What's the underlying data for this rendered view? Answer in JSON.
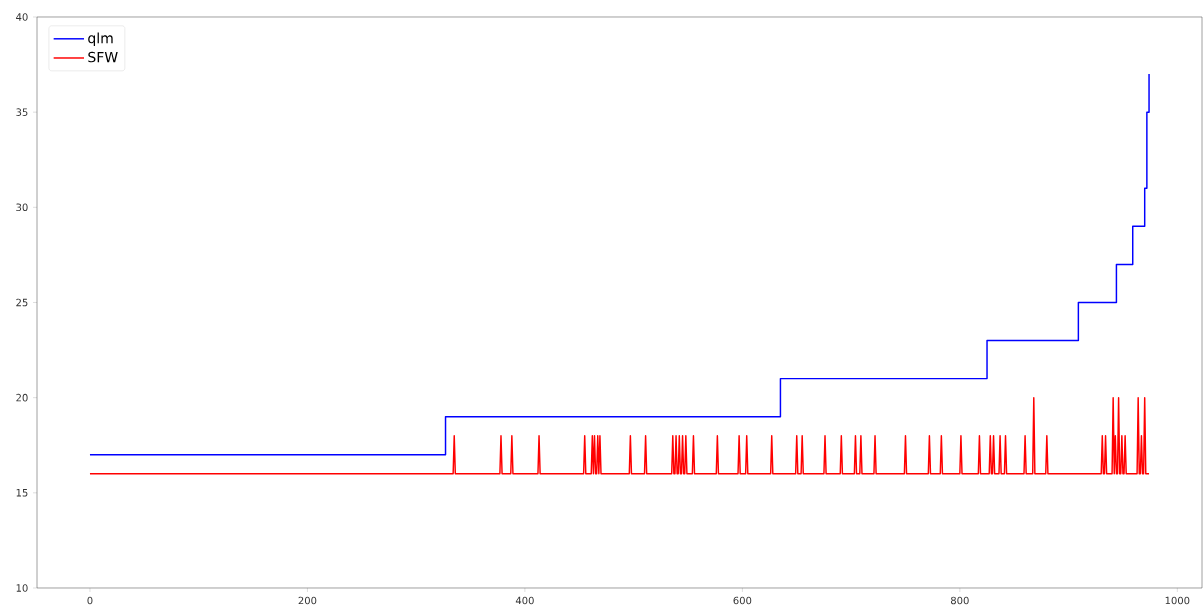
{
  "chart_data": {
    "type": "line",
    "series": [
      {
        "name": "qlm",
        "type": "step",
        "color": "#0000ff",
        "x": [
          0,
          327,
          635,
          825,
          909,
          944,
          959,
          970,
          972,
          974
        ],
        "values": [
          17,
          19,
          21,
          23,
          25,
          27,
          29,
          31,
          35,
          37
        ]
      },
      {
        "name": "SFW",
        "color": "#ff0000",
        "x": [
          0,
          334,
          335,
          336,
          377,
          378,
          379,
          387,
          388,
          389,
          412,
          413,
          414,
          454,
          455,
          456,
          461,
          462,
          463,
          463,
          464,
          465,
          466,
          467,
          468,
          468,
          469,
          470,
          496,
          497,
          498,
          510,
          511,
          512,
          535,
          536,
          537,
          538,
          539,
          540,
          541,
          542,
          543,
          544,
          545,
          546,
          547,
          548,
          549,
          554,
          555,
          556,
          576,
          577,
          578,
          596,
          597,
          598,
          603,
          604,
          605,
          626,
          627,
          628,
          649,
          650,
          651,
          654,
          655,
          656,
          675,
          676,
          677,
          690,
          691,
          692,
          703,
          704,
          705,
          708,
          709,
          710,
          721,
          722,
          723,
          749,
          750,
          751,
          771,
          772,
          773,
          782,
          783,
          784,
          800,
          801,
          802,
          817,
          818,
          819,
          827,
          828,
          829,
          830,
          831,
          832,
          836,
          837,
          838,
          841,
          842,
          843,
          859,
          860,
          861,
          867,
          868,
          869,
          879,
          880,
          881,
          930,
          931,
          932,
          933,
          934,
          935,
          940,
          941,
          942,
          942,
          943,
          944,
          945,
          946,
          947,
          948,
          949,
          950,
          951,
          952,
          953,
          963,
          964,
          965,
          966,
          967,
          968,
          969,
          970,
          971,
          974
        ],
        "values": [
          16,
          16,
          18,
          16,
          16,
          18,
          16,
          16,
          18,
          16,
          16,
          18,
          16,
          16,
          18,
          16,
          16,
          18,
          16,
          16,
          18,
          16,
          16,
          18,
          16,
          16,
          18,
          16,
          16,
          18,
          16,
          16,
          18,
          16,
          16,
          18,
          16,
          16,
          18,
          16,
          16,
          18,
          16,
          16,
          18,
          16,
          16,
          18,
          16,
          16,
          18,
          16,
          16,
          18,
          16,
          16,
          18,
          16,
          16,
          18,
          16,
          16,
          18,
          16,
          16,
          18,
          16,
          16,
          18,
          16,
          16,
          18,
          16,
          16,
          18,
          16,
          16,
          18,
          16,
          16,
          18,
          16,
          16,
          18,
          16,
          16,
          18,
          16,
          16,
          18,
          16,
          16,
          18,
          16,
          16,
          18,
          16,
          16,
          18,
          16,
          16,
          18,
          16,
          16,
          18,
          16,
          16,
          18,
          16,
          16,
          18,
          16,
          16,
          18,
          16,
          16,
          20,
          16,
          16,
          18,
          16,
          16,
          18,
          16,
          16,
          18,
          16,
          16,
          20,
          16,
          16,
          18,
          16,
          16,
          20,
          16,
          16,
          18,
          16,
          16,
          18,
          16,
          16,
          20,
          16,
          16,
          18,
          16,
          16,
          20,
          16,
          16
        ]
      }
    ],
    "xlim": [
      -48.7,
      1022.7
    ],
    "ylim": [
      10,
      40
    ],
    "xticks": [
      0,
      200,
      400,
      600,
      800,
      1000
    ],
    "yticks": [
      10,
      15,
      20,
      25,
      30,
      35,
      40
    ],
    "legend": "top left"
  }
}
